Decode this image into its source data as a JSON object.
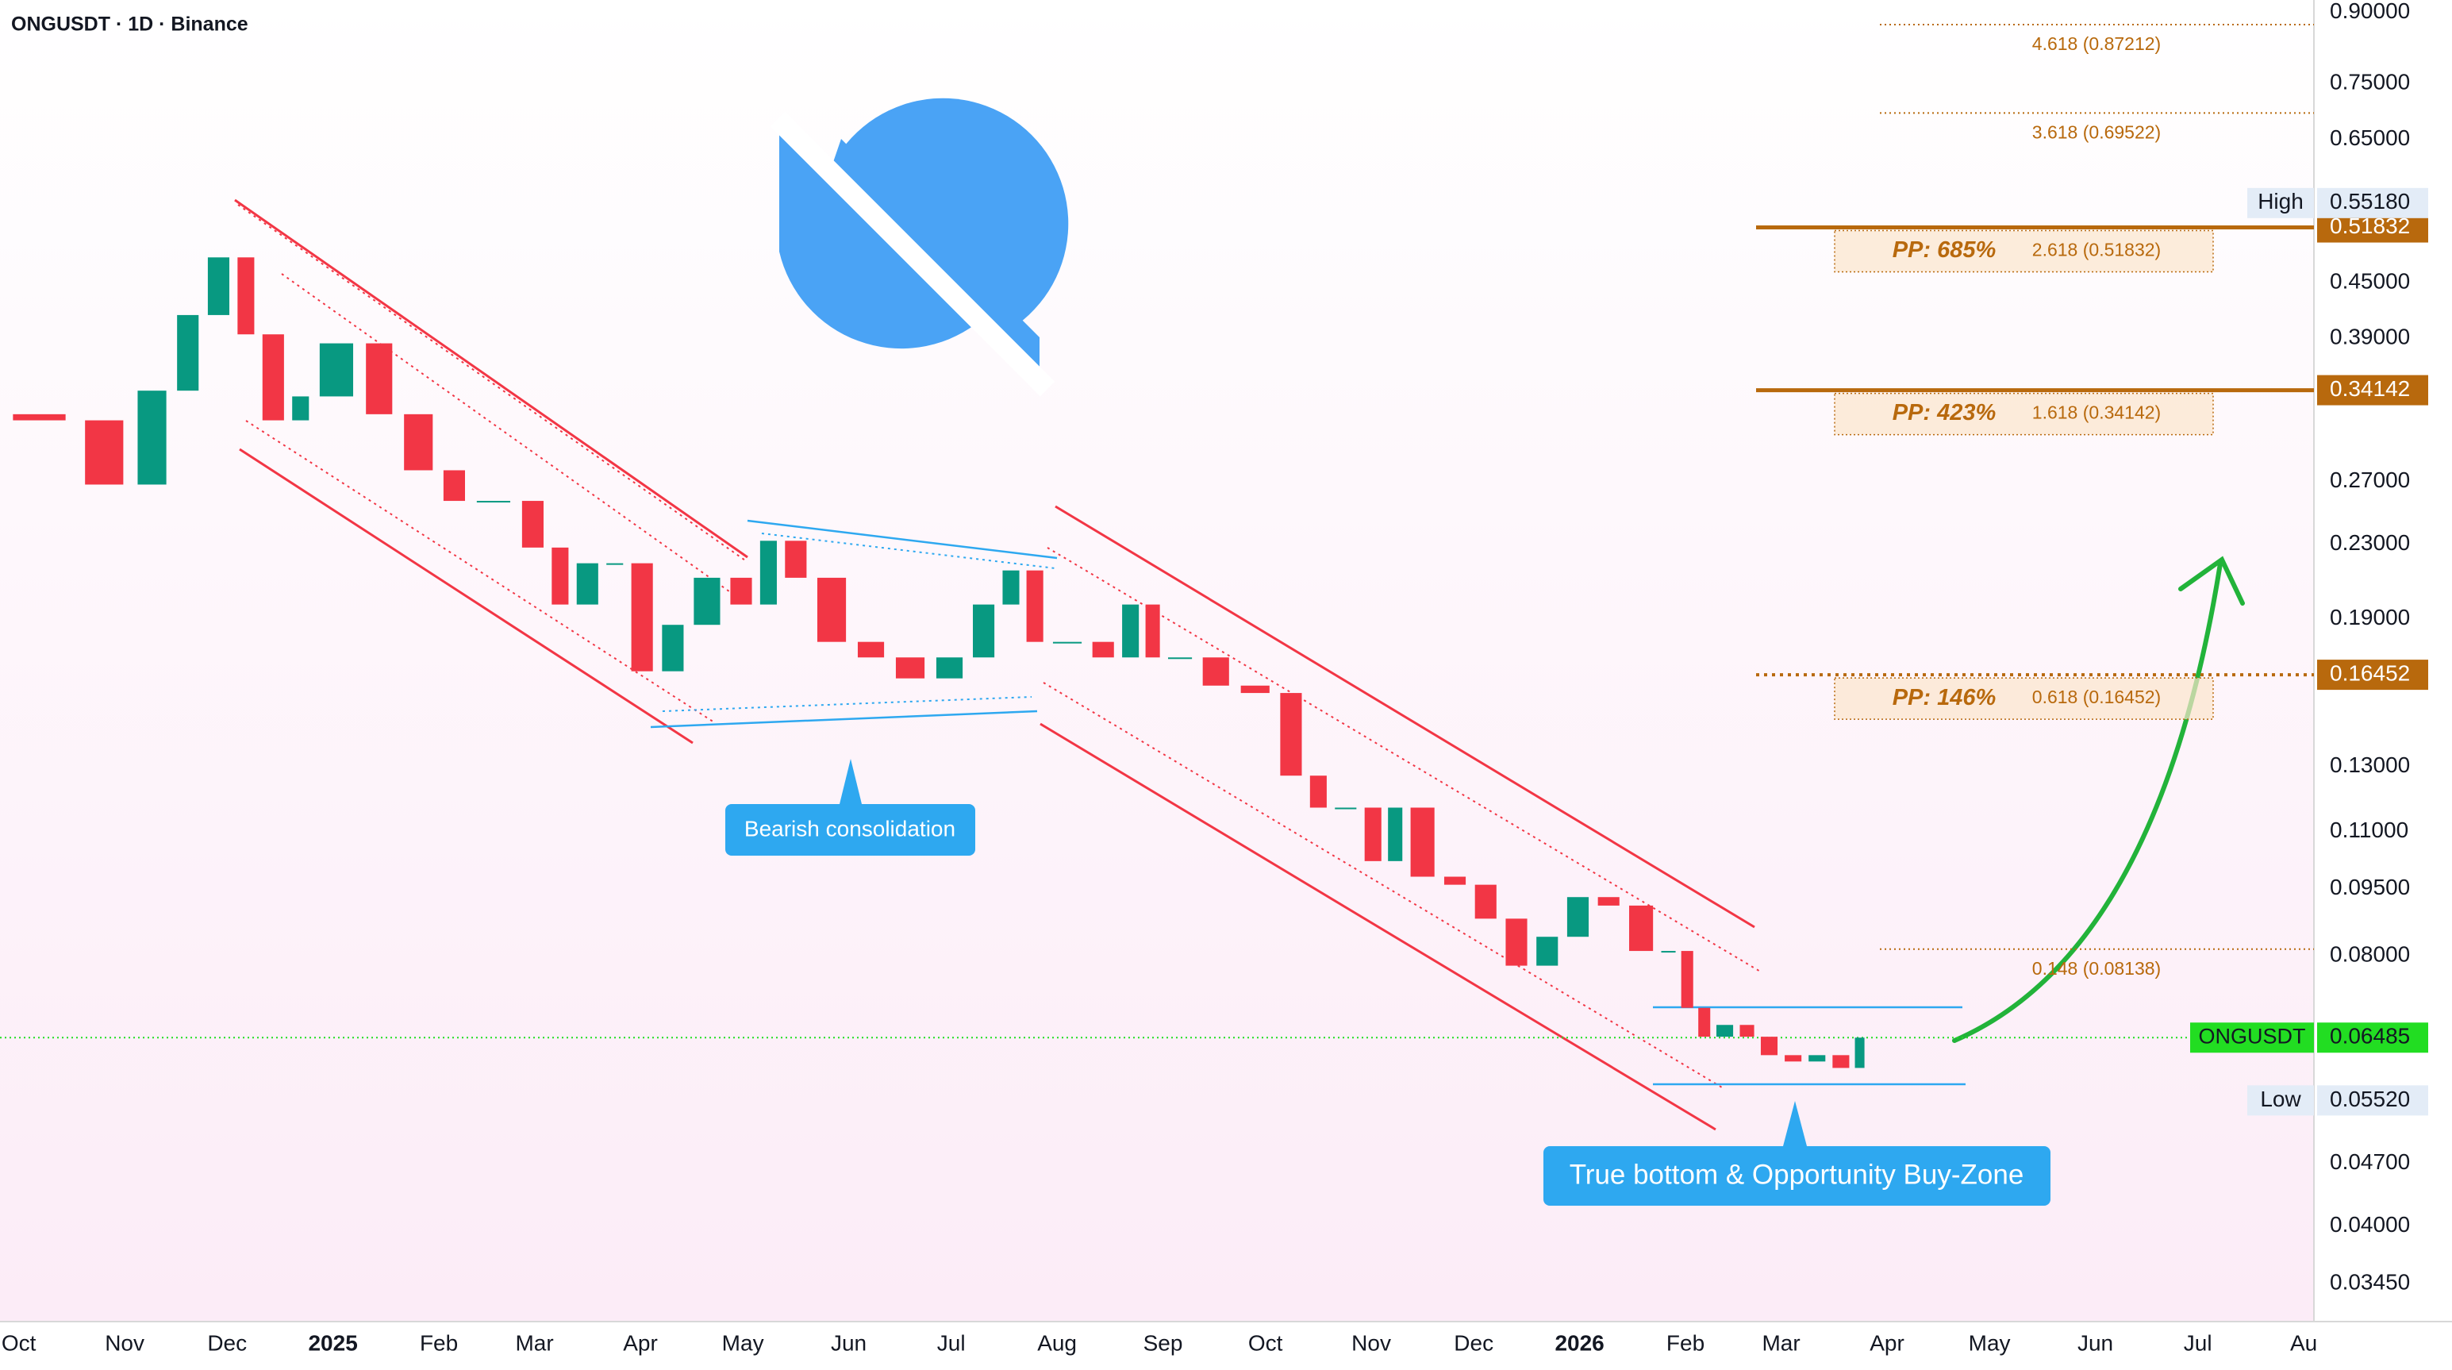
{
  "chart_data": {
    "type": "candlestick",
    "title": "ONGUSDT · 1D · Binance",
    "log_scale": true,
    "grid": false,
    "xlim": [
      -5.5,
      672
    ],
    "ylim": [
      0.0313,
      0.929
    ],
    "xticks": [
      {
        "value": 0,
        "label": "Oct"
      },
      {
        "value": 31,
        "label": "Nov"
      },
      {
        "value": 61,
        "label": "Dec"
      },
      {
        "value": 92,
        "label": "2025"
      },
      {
        "value": 123,
        "label": "Feb"
      },
      {
        "value": 151,
        "label": "Mar"
      },
      {
        "value": 182,
        "label": "Apr"
      },
      {
        "value": 212,
        "label": "May"
      },
      {
        "value": 243,
        "label": "Jun"
      },
      {
        "value": 273,
        "label": "Jul"
      },
      {
        "value": 304,
        "label": "Aug"
      },
      {
        "value": 335,
        "label": "Sep"
      },
      {
        "value": 365,
        "label": "Oct"
      },
      {
        "value": 396,
        "label": "Nov"
      },
      {
        "value": 426,
        "label": "Dec"
      },
      {
        "value": 457,
        "label": "2026"
      },
      {
        "value": 488,
        "label": "Feb"
      },
      {
        "value": 516,
        "label": "Mar"
      },
      {
        "value": 547,
        "label": "Apr"
      },
      {
        "value": 577,
        "label": "May"
      },
      {
        "value": 608,
        "label": "Jun"
      },
      {
        "value": 638,
        "label": "Jul"
      },
      {
        "value": 669,
        "label": "Au"
      }
    ],
    "yticks": [
      {
        "value": 0.9,
        "label": "0.90000"
      },
      {
        "value": 0.75,
        "label": "0.75000"
      },
      {
        "value": 0.65,
        "label": "0.65000"
      },
      {
        "value": 0.45,
        "label": "0.45000"
      },
      {
        "value": 0.39,
        "label": "0.39000"
      },
      {
        "value": 0.27,
        "label": "0.27000"
      },
      {
        "value": 0.23,
        "label": "0.23000"
      },
      {
        "value": 0.19,
        "label": "0.19000"
      },
      {
        "value": 0.13,
        "label": "0.13000"
      },
      {
        "value": 0.11,
        "label": "0.11000"
      },
      {
        "value": 0.095,
        "label": "0.09500"
      },
      {
        "value": 0.08,
        "label": "0.08000"
      },
      {
        "value": 0.047,
        "label": "0.04700"
      },
      {
        "value": 0.04,
        "label": "0.04000"
      },
      {
        "value": 0.0345,
        "label": "0.03450"
      }
    ],
    "series": [
      {
        "name": "ONGUSDT",
        "up_color": "#089981",
        "down_color": "#f23645",
        "x": [
          -5,
          17,
          33,
          45,
          54,
          63,
          70,
          79,
          86,
          100,
          111,
          123,
          132,
          146,
          155,
          162,
          171,
          178,
          187,
          196,
          207,
          216,
          223,
          232,
          244,
          255,
          267,
          278,
          287,
          294,
          301,
          313,
          322,
          329,
          335,
          345,
          356,
          368,
          377,
          384,
          393,
          400,
          406,
          416,
          425,
          434,
          443,
          452,
          461,
          470,
          480,
          486,
          491,
          496,
          503,
          509,
          516,
          523,
          530,
          537,
          541
        ],
        "values": [
          0.321,
          0.316,
          0.268,
          0.341,
          0.414,
          0.48,
          0.394,
          0.316,
          0.336,
          0.385,
          0.321,
          0.278,
          0.257,
          0.257,
          0.228,
          0.197,
          0.219,
          0.219,
          0.166,
          0.187,
          0.211,
          0.197,
          0.232,
          0.211,
          0.179,
          0.172,
          0.163,
          0.172,
          0.197,
          0.215,
          0.179,
          0.179,
          0.172,
          0.197,
          0.172,
          0.172,
          0.16,
          0.157,
          0.127,
          0.117,
          0.117,
          0.102,
          0.117,
          0.098,
          0.096,
          0.088,
          0.078,
          0.084,
          0.093,
          0.091,
          0.081,
          0.081,
          0.07,
          0.065,
          0.067,
          0.065,
          0.062,
          0.061,
          0.062,
          0.06,
          0.06485
        ]
      }
    ],
    "current": {
      "name": "ONGUSDT",
      "value": 0.06485,
      "label": "0.06485",
      "color": "#22dd22"
    },
    "tags": [
      {
        "name": "High",
        "value": 0.5518,
        "label": "0.55180"
      },
      {
        "name": "Low",
        "value": 0.0552,
        "label": "0.05520"
      }
    ],
    "levels": [
      {
        "pp": "PP: 685%",
        "fib": "2.618 (0.51832)",
        "value": 0.51832,
        "label": "0.51832",
        "style": "solid"
      },
      {
        "pp": "PP: 423%",
        "fib": "1.618 (0.34142)",
        "value": 0.34142,
        "label": "0.34142",
        "style": "solid"
      },
      {
        "pp": "PP: 146%",
        "fib": "0.618 (0.16452)",
        "value": 0.16452,
        "label": "0.16452",
        "style": "dotted"
      }
    ],
    "level_color": "#b8690d",
    "fib_lines": [
      {
        "fib": "4.618 (0.87212)",
        "value": 0.87212
      },
      {
        "fib": "3.618 (0.69522)",
        "value": 0.69522
      },
      {
        "fib": "0.148 (0.08138)",
        "value": 0.08138
      }
    ],
    "annotations": [
      "Bearish consolidation",
      "True bottom & Opportunity Buy-Zone"
    ]
  }
}
